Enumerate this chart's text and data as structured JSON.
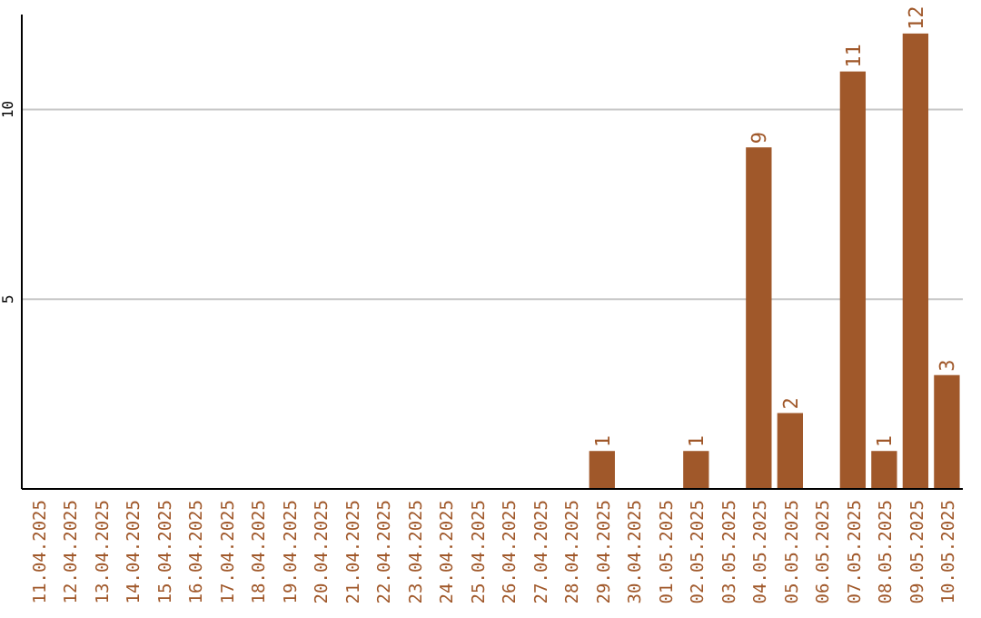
{
  "chart_data": {
    "type": "bar",
    "categories": [
      "11.04.2025",
      "12.04.2025",
      "13.04.2025",
      "14.04.2025",
      "15.04.2025",
      "16.04.2025",
      "17.04.2025",
      "18.04.2025",
      "19.04.2025",
      "20.04.2025",
      "21.04.2025",
      "22.04.2025",
      "23.04.2025",
      "24.04.2025",
      "25.04.2025",
      "26.04.2025",
      "27.04.2025",
      "28.04.2025",
      "29.04.2025",
      "30.04.2025",
      "01.05.2025",
      "02.05.2025",
      "03.05.2025",
      "04.05.2025",
      "05.05.2025",
      "06.05.2025",
      "07.05.2025",
      "08.05.2025",
      "09.05.2025",
      "10.05.2025"
    ],
    "values": [
      0,
      0,
      0,
      0,
      0,
      0,
      0,
      0,
      0,
      0,
      0,
      0,
      0,
      0,
      0,
      0,
      0,
      0,
      1,
      0,
      0,
      1,
      0,
      9,
      2,
      0,
      11,
      1,
      12,
      3
    ],
    "value_labels": [
      null,
      null,
      null,
      null,
      null,
      null,
      null,
      null,
      null,
      null,
      null,
      null,
      null,
      null,
      null,
      null,
      null,
      null,
      "1",
      null,
      null,
      "1",
      null,
      "9",
      "2",
      null,
      "11",
      "1",
      "12",
      "3"
    ],
    "color": "#a0582a",
    "ylim": [
      0,
      12.5
    ],
    "yticks": [
      5,
      10
    ],
    "grid": "y"
  }
}
